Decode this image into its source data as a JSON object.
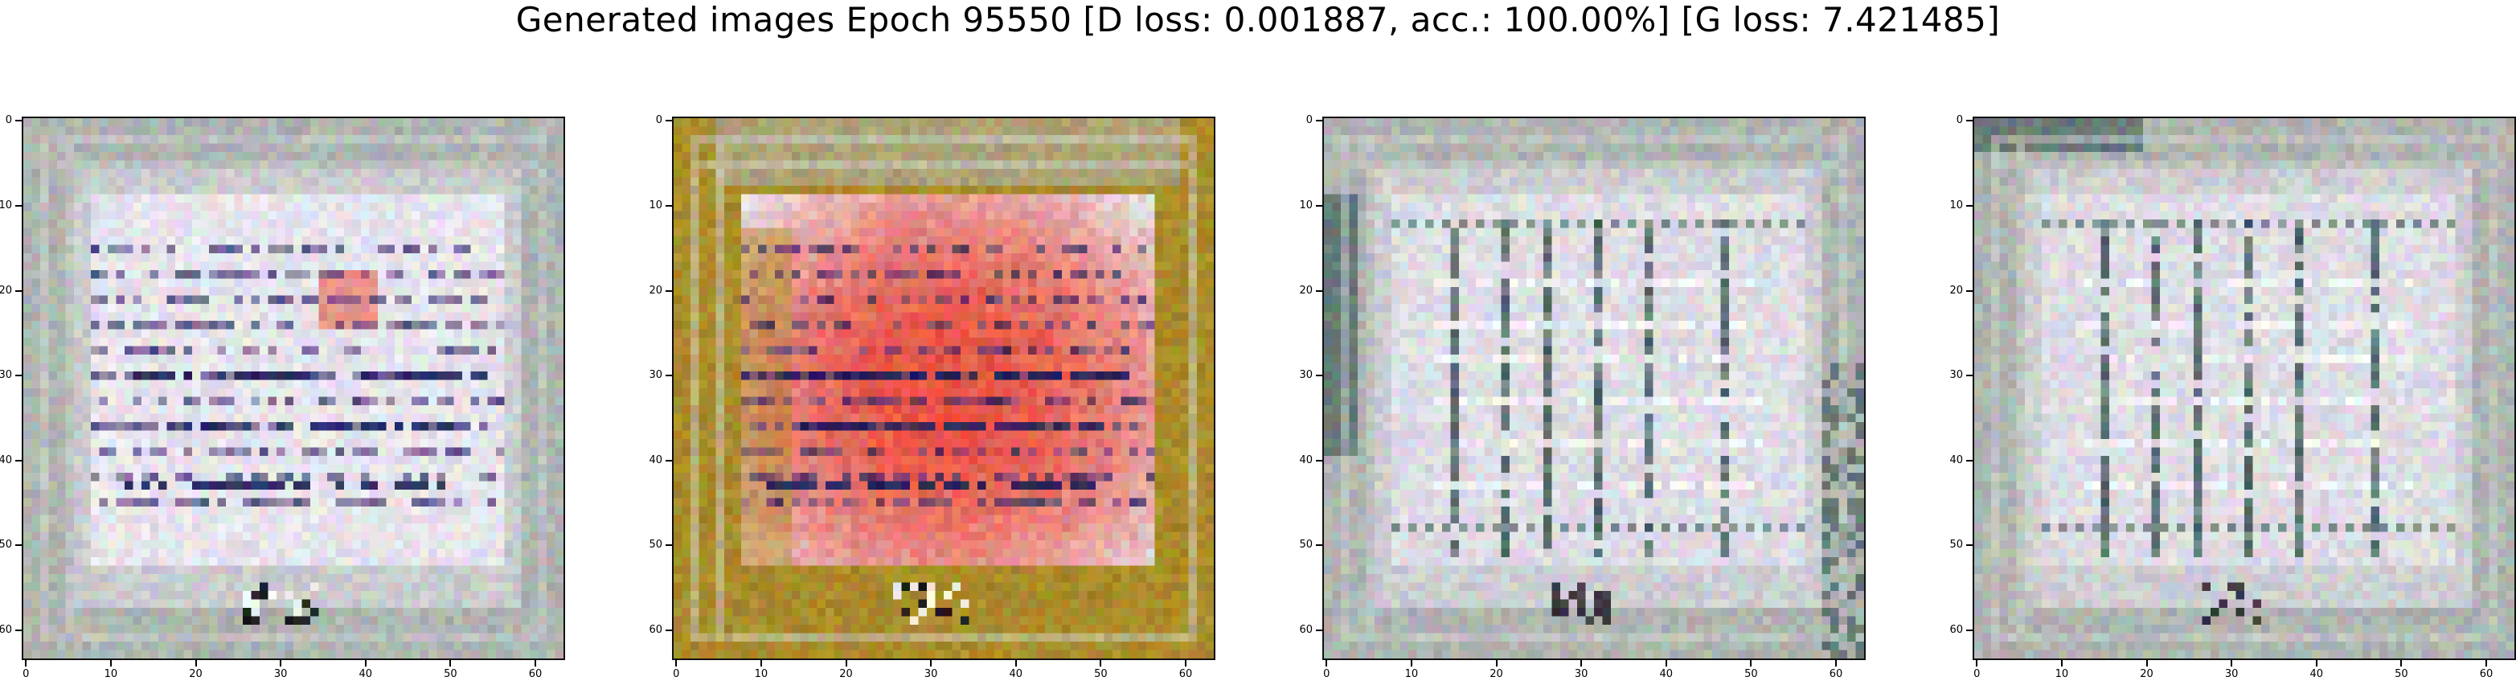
{
  "figure": {
    "title": "Generated images Epoch 95550 [D loss: 0.001887, acc.: 100.00%] [G loss: 7.421485]"
  },
  "image_grid": {
    "pixel_size": 64,
    "tick_values": [
      "0",
      "10",
      "20",
      "30",
      "40",
      "50",
      "60"
    ],
    "panels": [
      {
        "id": "sample-1",
        "description": "light grey frame with white page and dark text-like rows"
      },
      {
        "id": "sample-2",
        "description": "olive/yellow frame with red-orange page and dark text-like rows"
      },
      {
        "id": "sample-3",
        "description": "grey frame with white page and dark vertical/horizontal grid lines"
      },
      {
        "id": "sample-4",
        "description": "grey frame with white page and dark vertical/horizontal grid lines"
      }
    ],
    "colors": {
      "paper": "#e6e4ec",
      "frame_grey": "#aeb4b0",
      "ink_navy": "#1a1d5a",
      "ink_purple": "#5a3f7a",
      "red": "#e84f3d",
      "olive": "#a9871c",
      "dark_teal": "#1f3f3d"
    }
  }
}
